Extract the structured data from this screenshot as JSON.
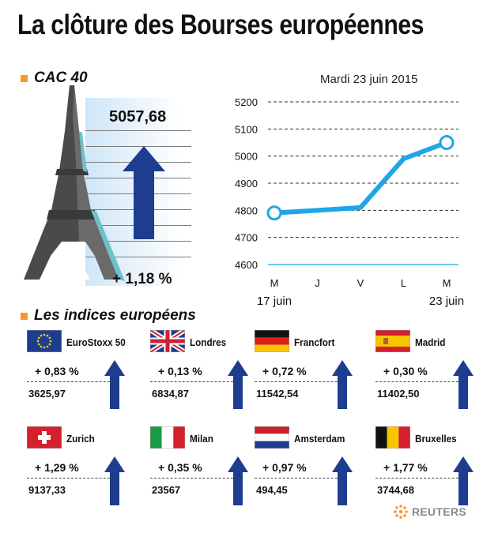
{
  "title": "La clôture des Bourses européennes",
  "cac": {
    "label": "CAC 40",
    "value": "5057,68",
    "change": "+ 1,18 %",
    "direction": "up"
  },
  "date": "Mardi 23 juin 2015",
  "chart_data": {
    "type": "line",
    "categories": [
      "M",
      "J",
      "V",
      "L",
      "M"
    ],
    "date_start": "17 juin",
    "date_end": "23 juin",
    "values": [
      4790,
      4800,
      4810,
      4990,
      5050
    ],
    "ylim": [
      4600,
      5200
    ],
    "yticks": [
      5200,
      5100,
      5000,
      4900,
      4800,
      4700,
      4600
    ],
    "grid": true,
    "line_color": "#1ea7e8"
  },
  "indices_title": "Les indices européens",
  "indices": [
    {
      "name": "EuroStoxx 50",
      "change": "+ 0,83 %",
      "value": "3625,97",
      "flag": "eu",
      "direction": "up"
    },
    {
      "name": "Londres",
      "change": "+ 0,13 %",
      "value": "6834,87",
      "flag": "uk",
      "direction": "up"
    },
    {
      "name": "Francfort",
      "change": "+ 0,72 %",
      "value": "11542,54",
      "flag": "de",
      "direction": "up"
    },
    {
      "name": "Madrid",
      "change": "+ 0,30 %",
      "value": "11402,50",
      "flag": "es",
      "direction": "up"
    },
    {
      "name": "Zurich",
      "change": "+ 1,29 %",
      "value": "9137,33",
      "flag": "ch",
      "direction": "up"
    },
    {
      "name": "Milan",
      "change": "+ 0,35 %",
      "value": "23567",
      "flag": "it",
      "direction": "up"
    },
    {
      "name": "Amsterdam",
      "change": "+ 0,97 %",
      "value": "494,45",
      "flag": "nl",
      "direction": "up"
    },
    {
      "name": "Bruxelles",
      "change": "+ 1,77 %",
      "value": "3744,68",
      "flag": "be",
      "direction": "up"
    }
  ],
  "colors": {
    "arrow": "#1f3d8f",
    "accent": "#f39a2b",
    "line": "#1ea7e8"
  },
  "source": "REUTERS"
}
